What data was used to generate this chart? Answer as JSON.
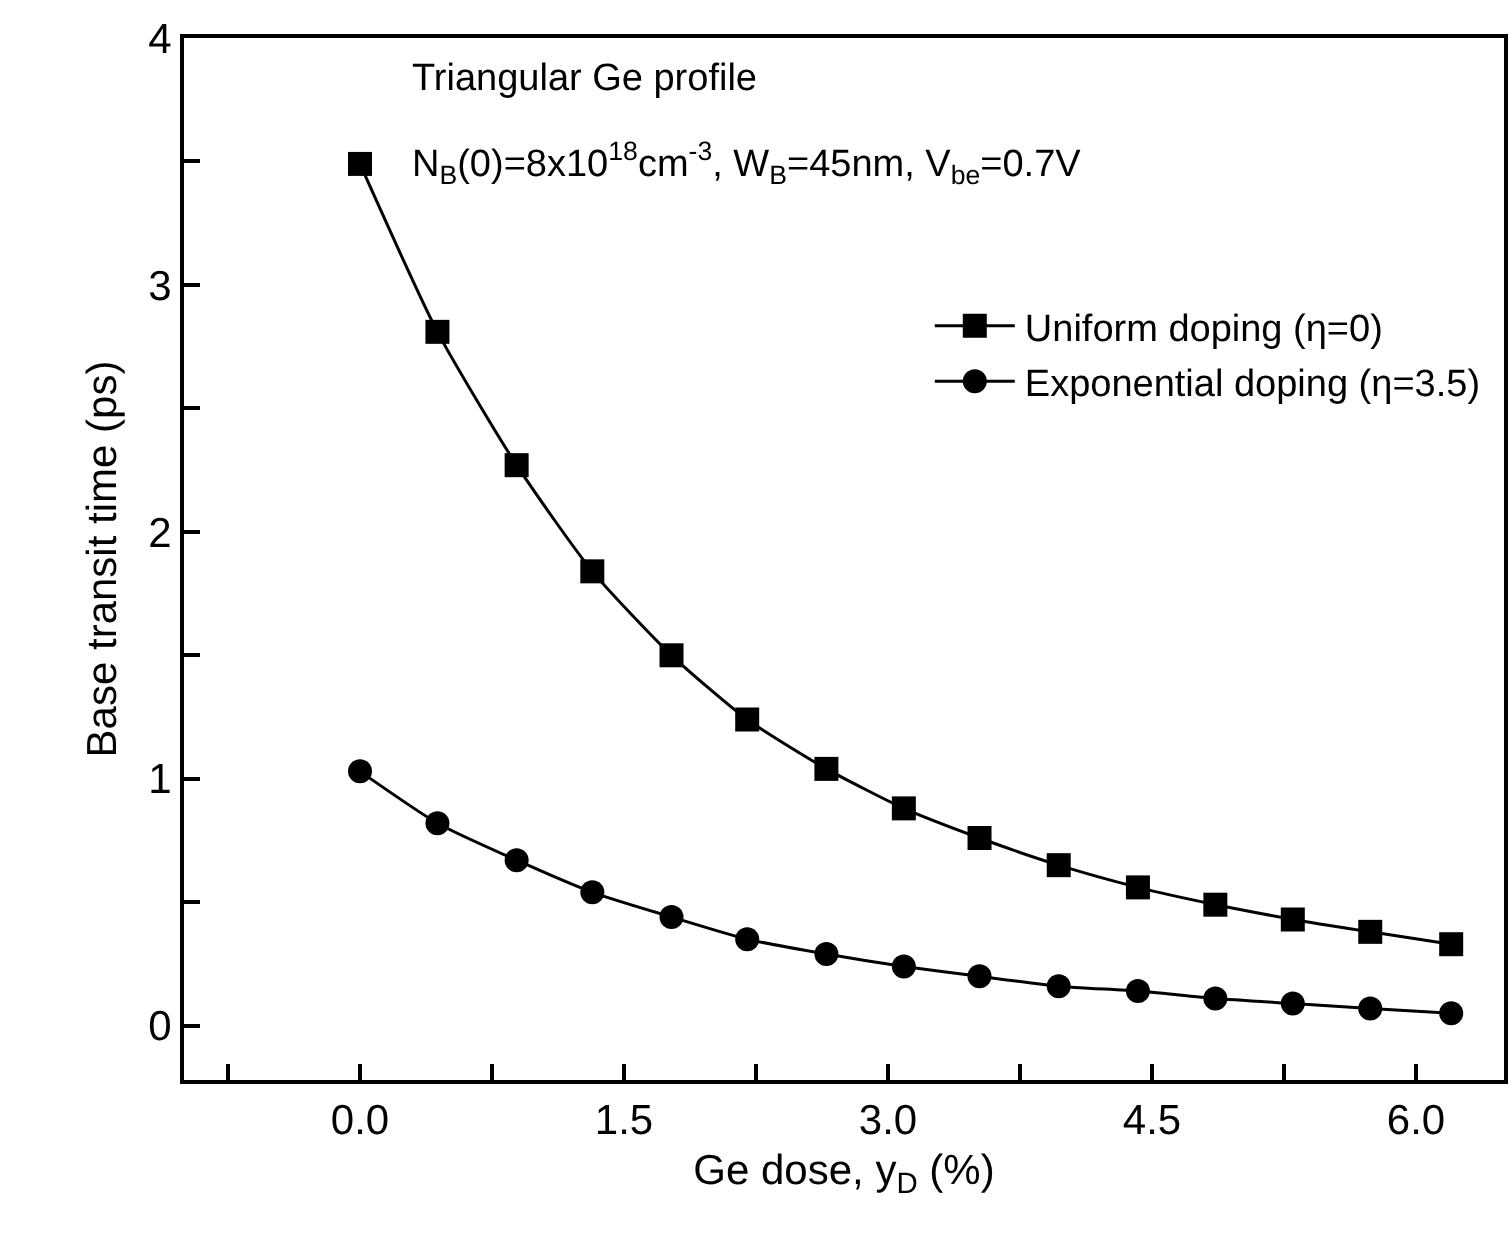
{
  "chart_data": {
    "type": "line",
    "xlabel": "Ge dose, y$_{D}$ (%)",
    "ylabel": "Base transit time (ps)",
    "annotations": [
      "Triangular Ge profile",
      "N$_{B}$(0)=8x10$^{18}$cm$^{-3}$, W$_{B}$=45nm, V$_{be}$=0.7V"
    ],
    "x": [
      0,
      0.44,
      0.89,
      1.32,
      1.77,
      2.2,
      2.65,
      3.09,
      3.52,
      3.97,
      4.42,
      4.86,
      5.3,
      5.74,
      6.2
    ],
    "series": [
      {
        "name": "Uniform doping (η=0)",
        "color": "#000000",
        "marker": "square",
        "values": [
          3.49,
          2.81,
          2.27,
          1.84,
          1.5,
          1.24,
          1.04,
          0.88,
          0.76,
          0.65,
          0.56,
          0.49,
          0.43,
          0.38,
          0.33
        ]
      },
      {
        "name": "Exponential doping (η=3.5)",
        "color": "#000000",
        "marker": "circle",
        "values": [
          1.03,
          0.82,
          0.67,
          0.54,
          0.44,
          0.35,
          0.29,
          0.24,
          0.2,
          0.16,
          0.14,
          0.11,
          0.09,
          0.07,
          0.05
        ]
      }
    ],
    "xlim": [
      -1,
      6.5
    ],
    "ylim": [
      -0.22,
      4
    ],
    "xticks": [
      {
        "value": -0.75,
        "label": null
      },
      {
        "value": 0,
        "label": "0.0"
      },
      {
        "value": 0.75,
        "label": null
      },
      1.5,
      {
        "value": 2.25,
        "label": null
      },
      {
        "value": 3,
        "label": "3.0"
      },
      {
        "value": 3.75,
        "label": null
      },
      4.5,
      {
        "value": 5.25,
        "label": null
      },
      {
        "value": 6,
        "label": "6.0"
      }
    ],
    "yticks": [
      0,
      {
        "value": 0.5,
        "label": null
      },
      1,
      {
        "value": 1.5,
        "label": null
      },
      2,
      {
        "value": 2.5,
        "label": null
      },
      3,
      {
        "value": 3.5,
        "label": null
      },
      4
    ],
    "grid": false,
    "legend": "top right",
    "line_style": "solid"
  }
}
